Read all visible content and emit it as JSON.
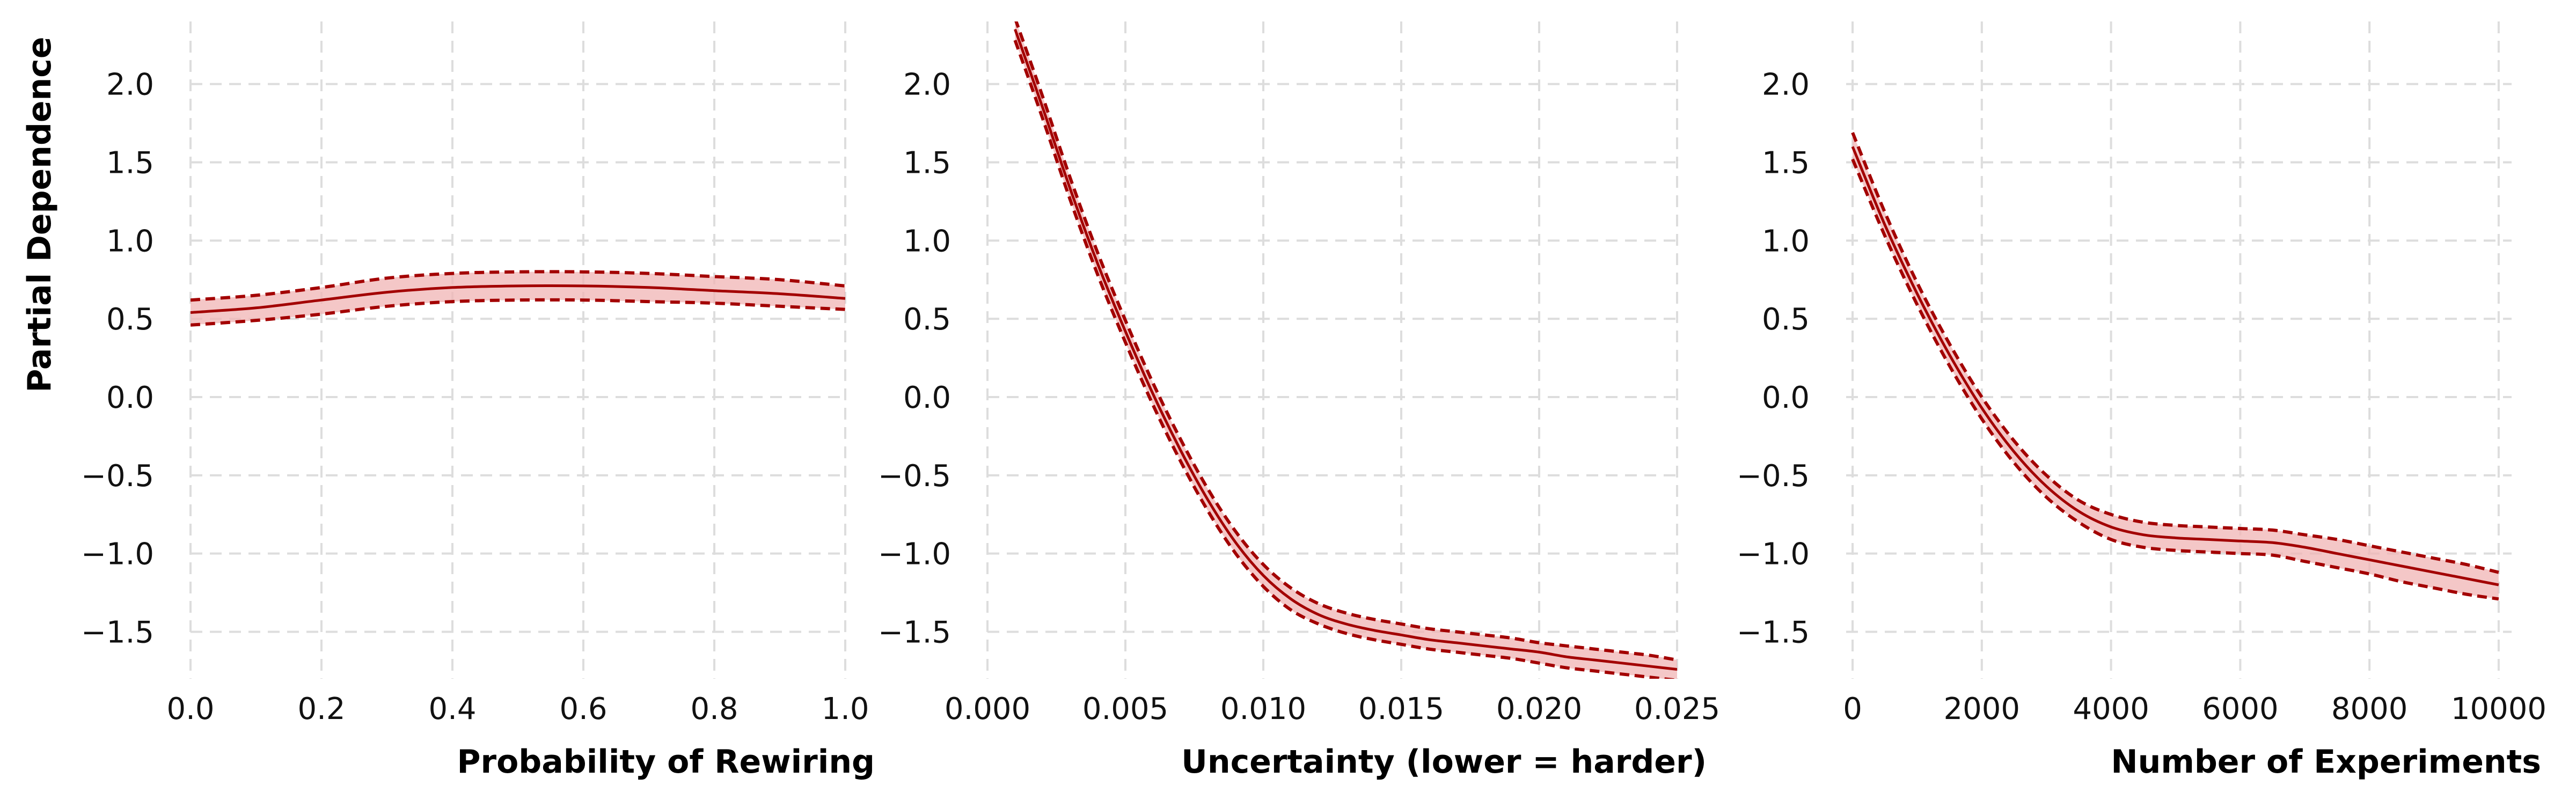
{
  "colors": {
    "line": "#a30000",
    "band_fill": "#f0b4b4",
    "grid": "#dddddd"
  },
  "shared_ylabel": "Partial Dependence",
  "chart_data": [
    {
      "type": "line",
      "xlabel": "Probability of Rewiring",
      "ylabel": "Partial Dependence",
      "xlim": [
        0.0,
        1.0
      ],
      "ylim": [
        -1.8,
        2.4
      ],
      "x_ticks": [
        0.0,
        0.2,
        0.4,
        0.6,
        0.8,
        1.0
      ],
      "x_tick_labels": [
        "0.0",
        "0.2",
        "0.4",
        "0.6",
        "0.8",
        "1.0"
      ],
      "y_ticks": [
        -1.5,
        -1.0,
        -0.5,
        0.0,
        0.5,
        1.0,
        1.5,
        2.0
      ],
      "y_tick_labels": [
        "−1.5",
        "−1.0",
        "−0.5",
        "0.0",
        "0.5",
        "1.0",
        "1.5",
        "2.0"
      ],
      "grid": true,
      "x": [
        0.0,
        0.1,
        0.2,
        0.3,
        0.4,
        0.5,
        0.6,
        0.7,
        0.8,
        0.9,
        1.0
      ],
      "y": [
        0.54,
        0.57,
        0.62,
        0.67,
        0.7,
        0.71,
        0.71,
        0.7,
        0.68,
        0.66,
        0.63
      ],
      "lower": [
        0.46,
        0.49,
        0.53,
        0.58,
        0.61,
        0.62,
        0.62,
        0.61,
        0.6,
        0.58,
        0.56
      ],
      "upper": [
        0.62,
        0.65,
        0.7,
        0.76,
        0.79,
        0.8,
        0.8,
        0.79,
        0.77,
        0.75,
        0.71
      ]
    },
    {
      "type": "line",
      "xlabel": "Uncertainty (lower = harder)",
      "xlim": [
        0.0,
        0.025
      ],
      "ylim": [
        -1.8,
        2.4
      ],
      "x_ticks": [
        0.0,
        0.005,
        0.01,
        0.015,
        0.02,
        0.025
      ],
      "x_tick_labels": [
        "0.000",
        "0.005",
        "0.010",
        "0.015",
        "0.020",
        "0.025"
      ],
      "y_ticks": [
        -1.5,
        -1.0,
        -0.5,
        0.0,
        0.5,
        1.0,
        1.5,
        2.0
      ],
      "y_tick_labels": [
        "−1.5",
        "−1.0",
        "−0.5",
        "0.0",
        "0.5",
        "1.0",
        "1.5",
        "2.0"
      ],
      "grid": true,
      "x": [
        0.001,
        0.002,
        0.003,
        0.004,
        0.005,
        0.006,
        0.007,
        0.008,
        0.009,
        0.01,
        0.011,
        0.012,
        0.013,
        0.014,
        0.015,
        0.016,
        0.017,
        0.018,
        0.019,
        0.02,
        0.021,
        0.022,
        0.023,
        0.024,
        0.025
      ],
      "y": [
        2.35,
        1.85,
        1.33,
        0.85,
        0.42,
        0.02,
        -0.34,
        -0.66,
        -0.93,
        -1.14,
        -1.29,
        -1.39,
        -1.45,
        -1.49,
        -1.52,
        -1.55,
        -1.57,
        -1.59,
        -1.61,
        -1.63,
        -1.66,
        -1.68,
        -1.7,
        -1.72,
        -1.74
      ],
      "lower": [
        2.28,
        1.78,
        1.26,
        0.78,
        0.35,
        -0.05,
        -0.41,
        -0.73,
        -1.0,
        -1.21,
        -1.36,
        -1.45,
        -1.51,
        -1.55,
        -1.58,
        -1.61,
        -1.63,
        -1.65,
        -1.67,
        -1.7,
        -1.73,
        -1.75,
        -1.77,
        -1.79,
        -1.81
      ],
      "upper": [
        2.42,
        1.92,
        1.4,
        0.92,
        0.49,
        0.09,
        -0.27,
        -0.59,
        -0.86,
        -1.07,
        -1.22,
        -1.32,
        -1.38,
        -1.42,
        -1.45,
        -1.48,
        -1.5,
        -1.52,
        -1.54,
        -1.57,
        -1.59,
        -1.61,
        -1.63,
        -1.65,
        -1.68
      ]
    },
    {
      "type": "line",
      "xlabel": "Number of Experiments",
      "xlim": [
        -100,
        10200
      ],
      "ylim": [
        -1.8,
        2.4
      ],
      "x_ticks": [
        0,
        2000,
        4000,
        6000,
        8000,
        10000
      ],
      "x_tick_labels": [
        "0",
        "2000",
        "4000",
        "6000",
        "8000",
        "10000"
      ],
      "y_ticks": [
        -1.5,
        -1.0,
        -0.5,
        0.0,
        0.5,
        1.0,
        1.5,
        2.0
      ],
      "y_tick_labels": [
        "−1.5",
        "−1.0",
        "−0.5",
        "0.0",
        "0.5",
        "1.0",
        "1.5",
        "2.0"
      ],
      "grid": true,
      "x": [
        0,
        500,
        1000,
        1500,
        2000,
        2500,
        3000,
        3500,
        4000,
        4500,
        5000,
        5500,
        6000,
        6500,
        7000,
        7500,
        8000,
        8500,
        9000,
        9500,
        10000
      ],
      "y": [
        1.6,
        1.1,
        0.66,
        0.27,
        -0.07,
        -0.35,
        -0.57,
        -0.73,
        -0.83,
        -0.88,
        -0.9,
        -0.91,
        -0.92,
        -0.93,
        -0.96,
        -1.0,
        -1.04,
        -1.08,
        -1.12,
        -1.16,
        -1.2
      ],
      "lower": [
        1.52,
        1.03,
        0.59,
        0.2,
        -0.14,
        -0.42,
        -0.64,
        -0.8,
        -0.91,
        -0.96,
        -0.98,
        -0.99,
        -1.0,
        -1.01,
        -1.05,
        -1.09,
        -1.13,
        -1.18,
        -1.22,
        -1.26,
        -1.29
      ],
      "upper": [
        1.69,
        1.18,
        0.73,
        0.34,
        0.0,
        -0.28,
        -0.5,
        -0.66,
        -0.75,
        -0.8,
        -0.82,
        -0.83,
        -0.84,
        -0.85,
        -0.88,
        -0.91,
        -0.95,
        -0.99,
        -1.03,
        -1.07,
        -1.12
      ]
    }
  ]
}
